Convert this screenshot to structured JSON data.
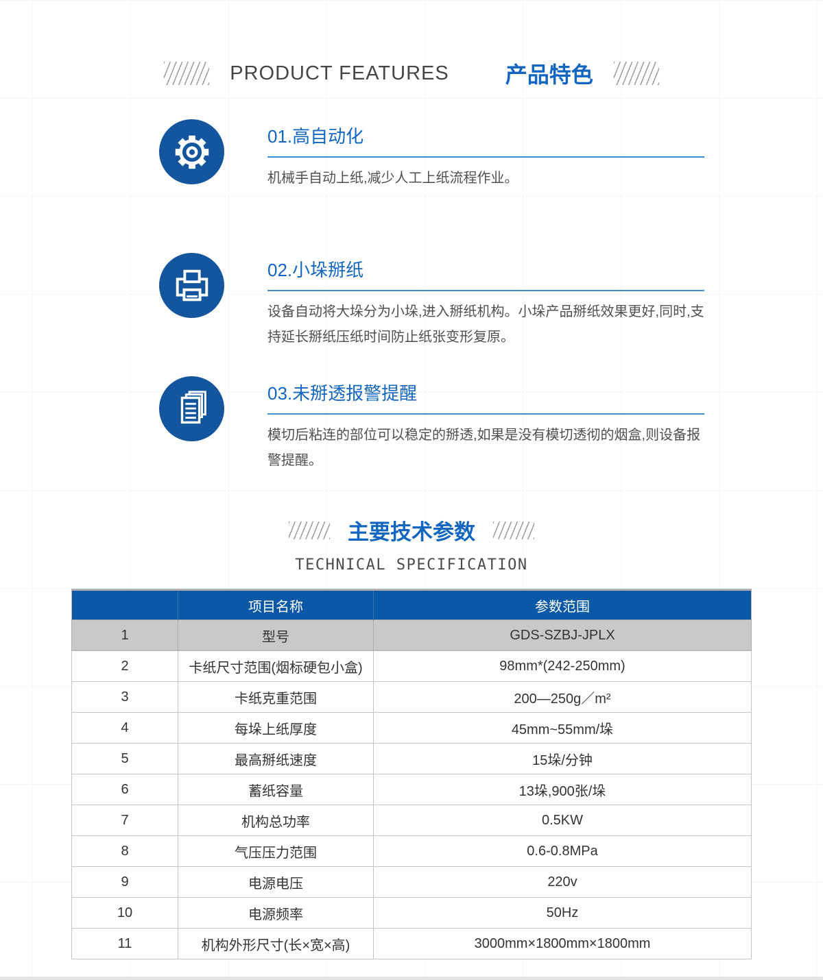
{
  "colors": {
    "accent_blue": "#1266c1",
    "underline_blue": "#4388d5",
    "icon_circle_blue": "#14569e",
    "table_header_blue": "#0b58a6",
    "highlight_row_gray": "#c9c9c9"
  },
  "features_section": {
    "title_en": "PRODUCT FEATURES",
    "title_zh": "产品特色",
    "features": [
      {
        "icon": "gear-icon",
        "title": "01.高自动化",
        "desc": "机械手自动上纸,减少人工上纸流程作业。"
      },
      {
        "icon": "printer-icon",
        "title": "02.小垛掰纸",
        "desc": "设备自动将大垛分为小垛,进入掰纸机构。小垛产品掰纸效果更好,同时,支持延长掰纸压纸时间防止纸张变形复原。"
      },
      {
        "icon": "documents-icon",
        "title": "03.未掰透报警提醒",
        "desc": "模切后粘连的部位可以稳定的掰透,如果是没有模切透彻的烟盒,则设备报警提醒。"
      }
    ]
  },
  "spec_section": {
    "title_zh": "主要技术参数",
    "title_en": "TECHNICAL SPECIFICATION",
    "table": {
      "headers": [
        "",
        "项目名称",
        "参数范围"
      ],
      "rows": [
        [
          "1",
          "型号",
          "GDS-SZBJ-JPLX"
        ],
        [
          "2",
          "卡纸尺寸范围(烟标硬包小盒)",
          "98mm*(242-250mm)"
        ],
        [
          "3",
          "卡纸克重范围",
          "200—250g／m²"
        ],
        [
          "4",
          "每垛上纸厚度",
          "45mm~55mm/垛"
        ],
        [
          "5",
          "最高掰纸速度",
          "15垛/分钟"
        ],
        [
          "6",
          "蓄纸容量",
          "13垛,900张/垛"
        ],
        [
          "7",
          "机构总功率",
          "0.5KW"
        ],
        [
          "8",
          "气压压力范围",
          "0.6-0.8MPa"
        ],
        [
          "9",
          "电源电压",
          "220v"
        ],
        [
          "10",
          "电源频率",
          "50Hz"
        ],
        [
          "11",
          "机构外形尺寸(长×宽×高)",
          "3000mm×1800mm×1800mm"
        ]
      ]
    }
  }
}
